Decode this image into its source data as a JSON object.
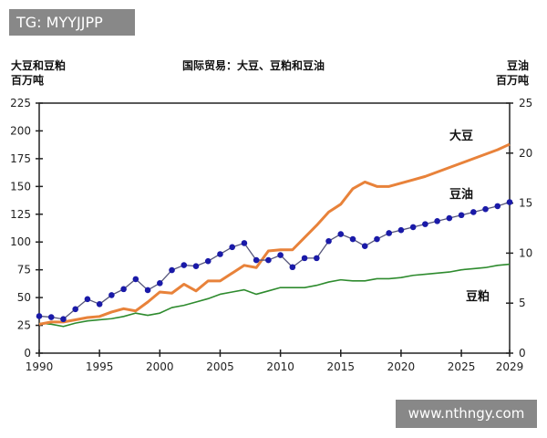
{
  "watermark_top": "TG: MYYJJPP",
  "watermark_bottom": "www.nthngy.com",
  "chart_data": {
    "type": "line",
    "title": "国际贸易：大豆、豆粕和豆油",
    "ylabel_left": [
      "大豆和豆粕",
      "百万吨"
    ],
    "ylabel_right": [
      "豆油",
      "百万吨"
    ],
    "x": [
      1990,
      1991,
      1992,
      1993,
      1994,
      1995,
      1996,
      1997,
      1998,
      1999,
      2000,
      2001,
      2002,
      2003,
      2004,
      2005,
      2006,
      2007,
      2008,
      2009,
      2010,
      2011,
      2012,
      2013,
      2014,
      2015,
      2016,
      2017,
      2018,
      2019,
      2020,
      2021,
      2022,
      2023,
      2024,
      2025,
      2026,
      2027,
      2028,
      2029
    ],
    "xlim": [
      1990,
      2029
    ],
    "xticks": [
      "1990",
      "1995",
      "2000",
      "2005",
      "2010",
      "2015",
      "2020",
      "2025",
      "2029"
    ],
    "ylim_left": [
      0,
      225
    ],
    "yticks_left": [
      "0",
      "25",
      "50",
      "75",
      "100",
      "125",
      "150",
      "175",
      "200",
      "225"
    ],
    "ylim_right": [
      0,
      25
    ],
    "yticks_right": [
      "0",
      "5",
      "10",
      "15",
      "20",
      "25"
    ],
    "grid": false,
    "series": [
      {
        "name": "大豆",
        "axis": "left",
        "color": "#e8823a",
        "marker": "none",
        "values": [
          26,
          28,
          28,
          30,
          32,
          33,
          37,
          40,
          38,
          46,
          55,
          54,
          62,
          56,
          65,
          65,
          72,
          79,
          77,
          92,
          93,
          93,
          104,
          115,
          127,
          134,
          148,
          154,
          150,
          150,
          153,
          156,
          159,
          163,
          167,
          171,
          175,
          179,
          183,
          188
        ]
      },
      {
        "name": "豆油",
        "axis": "right",
        "color": "#1a1aa8",
        "marker": "circle",
        "values": [
          3.7,
          3.6,
          3.4,
          4.4,
          5.4,
          4.9,
          5.8,
          6.4,
          7.4,
          6.3,
          7.0,
          8.3,
          8.8,
          8.7,
          9.2,
          9.9,
          10.6,
          11.0,
          9.3,
          9.3,
          9.8,
          8.6,
          9.5,
          9.5,
          11.2,
          11.9,
          11.4,
          10.7,
          11.4,
          12.0,
          12.3,
          12.6,
          12.9,
          13.2,
          13.5,
          13.8,
          14.1,
          14.4,
          14.7,
          15.1
        ]
      },
      {
        "name": "豆粕",
        "axis": "left",
        "color": "#2e8b2e",
        "marker": "none",
        "values": [
          27,
          26,
          24,
          27,
          29,
          30,
          31,
          33,
          36,
          34,
          36,
          41,
          43,
          46,
          49,
          53,
          55,
          57,
          53,
          56,
          59,
          59,
          59,
          61,
          64,
          66,
          65,
          65,
          67,
          67,
          68,
          70,
          71,
          72,
          73,
          75,
          76,
          77,
          79,
          80
        ]
      }
    ]
  }
}
